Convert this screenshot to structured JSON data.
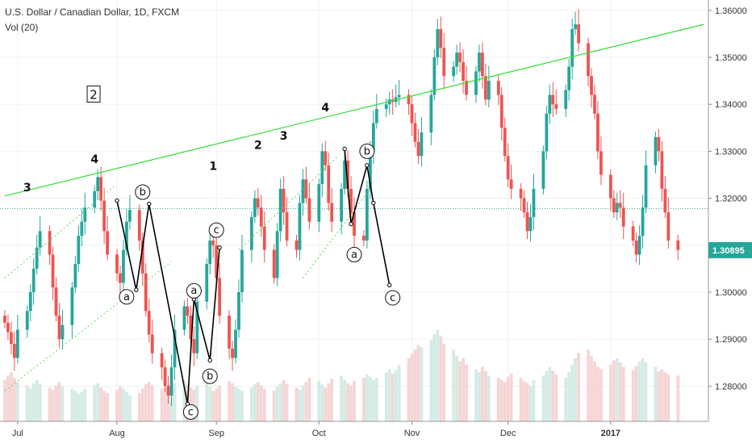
{
  "header": {
    "title": "U.S. Dollar / Canadian Dollar, 1D, FXCM",
    "volume_label": "Vol (20)"
  },
  "colors": {
    "up": "#26a69a",
    "down": "#ef5350",
    "vol_up": "#d4ebe6",
    "vol_down": "#f5d5d5",
    "trendline": "#33dd33",
    "channel": "#55dd55",
    "current_price_line": "#26a69a",
    "wave_path": "#000000"
  },
  "chart_data": {
    "type": "candlestick",
    "y_axis": {
      "ylim": [
        1.2725,
        1.3622
      ],
      "ticks": [
        "1.36000",
        "1.35000",
        "1.34000",
        "1.33000",
        "1.32000",
        "1.31000",
        "1.30000",
        "1.29000",
        "1.28000"
      ]
    },
    "x_axis": {
      "ticks": [
        {
          "label": "Jul",
          "date": "2016-07-01",
          "bold": false
        },
        {
          "label": "Aug",
          "date": "2016-08-01",
          "bold": false
        },
        {
          "label": "Sep",
          "date": "2016-09-01",
          "bold": false
        },
        {
          "label": "Oct",
          "date": "2016-10-03",
          "bold": false
        },
        {
          "label": "Nov",
          "date": "2016-11-01",
          "bold": false
        },
        {
          "label": "Dec",
          "date": "2016-12-01",
          "bold": false
        },
        {
          "label": "2017",
          "date": "2017-01-02",
          "bold": true
        }
      ]
    },
    "current_price": 1.30895,
    "current_price_label": "1.30895",
    "reference_price": 1.3178,
    "first_date": "2016-06-27",
    "last_date": "2017-01-31",
    "closes": [
      1.2935,
      1.2915,
      1.289,
      1.286,
      1.292,
      1.296,
      1.3,
      1.305,
      1.3095,
      1.313,
      1.308,
      1.301,
      1.295,
      1.29,
      1.293,
      1.301,
      1.306,
      1.312,
      1.315,
      1.318,
      1.3215,
      1.3245,
      1.3195,
      1.313,
      1.308,
      1.304,
      1.302,
      1.309,
      1.315,
      1.3175,
      1.311,
      1.304,
      1.296,
      1.291,
      1.287,
      1.284,
      1.28,
      1.278,
      1.284,
      1.292,
      1.297,
      1.295,
      1.29,
      1.287,
      1.298,
      1.306,
      1.311,
      1.31,
      1.303,
      1.295,
      1.288,
      1.286,
      1.292,
      1.3,
      1.309,
      1.316,
      1.32,
      1.318,
      1.314,
      1.309,
      1.303,
      1.313,
      1.322,
      1.317,
      1.311,
      1.309,
      1.319,
      1.324,
      1.32,
      1.315,
      1.323,
      1.33,
      1.327,
      1.319,
      1.315,
      1.322,
      1.328,
      1.322,
      1.317,
      1.312,
      1.311,
      1.322,
      1.33,
      1.336,
      1.339,
      1.34,
      1.341,
      1.3405,
      1.3415,
      1.342,
      1.34,
      1.336,
      1.332,
      1.329,
      1.334,
      1.342,
      1.35,
      1.356,
      1.352,
      1.346,
      1.348,
      1.351,
      1.349,
      1.345,
      1.342,
      1.347,
      1.351,
      1.346,
      1.341,
      1.345,
      1.342,
      1.335,
      1.329,
      1.324,
      1.322,
      1.32,
      1.317,
      1.313,
      1.316,
      1.322,
      1.33,
      1.338,
      1.342,
      1.34,
      1.339,
      1.343,
      1.348,
      1.356,
      1.357,
      1.353,
      1.346,
      1.342,
      1.338,
      1.33,
      1.325,
      1.32,
      1.317,
      1.319,
      1.318,
      1.314,
      1.311,
      1.308,
      1.312,
      1.318,
      1.327,
      1.333,
      1.33,
      1.322,
      1.317,
      1.311,
      1.309
    ],
    "volume_ylim": [
      0,
      1
    ],
    "volumes": [
      0.38,
      0.42,
      0.45,
      0.4,
      0.36,
      0.33,
      0.3,
      0.35,
      0.38,
      0.34,
      0.31,
      0.29,
      0.33,
      0.36,
      0.32,
      0.3,
      0.28,
      0.25,
      0.27,
      0.3,
      0.33,
      0.35,
      0.31,
      0.28,
      0.26,
      0.29,
      0.32,
      0.3,
      0.27,
      0.24,
      0.26,
      0.3,
      0.34,
      0.36,
      0.33,
      0.3,
      0.31,
      0.34,
      0.32,
      0.35,
      0.38,
      0.34,
      0.31,
      0.29,
      0.33,
      0.36,
      0.32,
      0.28,
      0.3,
      0.33,
      0.37,
      0.35,
      0.32,
      0.3,
      0.28,
      0.31,
      0.34,
      0.36,
      0.33,
      0.3,
      0.28,
      0.32,
      0.35,
      0.38,
      0.34,
      0.31,
      0.29,
      0.33,
      0.36,
      0.4,
      0.37,
      0.34,
      0.31,
      0.35,
      0.39,
      0.42,
      0.38,
      0.35,
      0.33,
      0.37,
      0.4,
      0.43,
      0.41,
      0.38,
      0.4,
      0.45,
      0.48,
      0.44,
      0.47,
      0.52,
      0.58,
      0.62,
      0.66,
      0.7,
      0.68,
      0.75,
      0.8,
      0.84,
      0.78,
      0.71,
      0.66,
      0.6,
      0.55,
      0.58,
      0.52,
      0.48,
      0.45,
      0.5,
      0.46,
      0.42,
      0.4,
      0.38,
      0.36,
      0.41,
      0.44,
      0.4,
      0.37,
      0.35,
      0.33,
      0.38,
      0.42,
      0.46,
      0.5,
      0.47,
      0.43,
      0.4,
      0.45,
      0.52,
      0.58,
      0.63,
      0.66,
      0.6,
      0.55,
      0.5,
      0.48,
      0.52,
      0.56,
      0.58,
      0.54,
      0.5,
      0.47,
      0.51,
      0.55,
      0.58,
      0.54,
      0.5,
      0.46,
      0.48,
      0.45,
      0.43,
      0.42
    ]
  },
  "annotations": {
    "box_label": "2",
    "wave_labels": [
      {
        "text": "3",
        "date": "2016-07-04",
        "price": 1.3215
      },
      {
        "text": "4",
        "date": "2016-07-25",
        "price": 1.3275
      },
      {
        "text": "1",
        "date": "2016-08-31",
        "price": 1.326
      },
      {
        "text": "2",
        "date": "2016-09-14",
        "price": 1.3305
      },
      {
        "text": "3",
        "date": "2016-09-22",
        "price": 1.3325
      },
      {
        "text": "4",
        "date": "2016-10-05",
        "price": 1.3385
      }
    ],
    "circled_labels": [
      {
        "text": "a",
        "date": "2016-08-04",
        "price": 1.299
      },
      {
        "text": "b",
        "date": "2016-08-09",
        "price": 1.3213
      },
      {
        "text": "a",
        "date": "2016-08-25",
        "price": 1.3003
      },
      {
        "text": "b",
        "date": "2016-08-30",
        "price": 1.2821
      },
      {
        "text": "c",
        "date": "2016-08-24",
        "price": 1.2745
      },
      {
        "text": "c",
        "date": "2016-09-01",
        "price": 1.3132
      },
      {
        "text": "a",
        "date": "2016-10-14",
        "price": 1.308
      },
      {
        "text": "b",
        "date": "2016-10-18",
        "price": 1.33
      },
      {
        "text": "c",
        "date": "2016-10-26",
        "price": 1.2988
      }
    ],
    "wave_paths": [
      [
        [
          "2016-08-01",
          1.3195
        ],
        [
          "2016-08-07",
          1.3005
        ],
        [
          "2016-08-11",
          1.3188
        ],
        [
          "2016-08-23",
          1.2762
        ],
        [
          "2016-08-25",
          1.2985
        ],
        [
          "2016-08-30",
          1.2855
        ],
        [
          "2016-09-02",
          1.3095
        ]
      ],
      [
        [
          "2016-10-11",
          1.3305
        ],
        [
          "2016-10-13",
          1.3145
        ],
        [
          "2016-10-18",
          1.327
        ],
        [
          "2016-10-20",
          1.319
        ],
        [
          "2016-10-25",
          1.3015
        ]
      ]
    ],
    "trendline": [
      [
        "2016-06-27",
        1.3205
      ],
      [
        "2017-01-31",
        1.357
      ]
    ],
    "channels": [
      [
        [
          "2016-06-27",
          1.303
        ],
        [
          "2016-07-31",
          1.3225
        ]
      ],
      [
        [
          "2016-06-27",
          1.279
        ],
        [
          "2016-08-18",
          1.3065
        ]
      ],
      [
        [
          "2016-09-08",
          1.309
        ],
        [
          "2016-10-09",
          1.329
        ]
      ],
      [
        [
          "2016-09-28",
          1.303
        ],
        [
          "2016-10-19",
          1.322
        ]
      ]
    ]
  }
}
